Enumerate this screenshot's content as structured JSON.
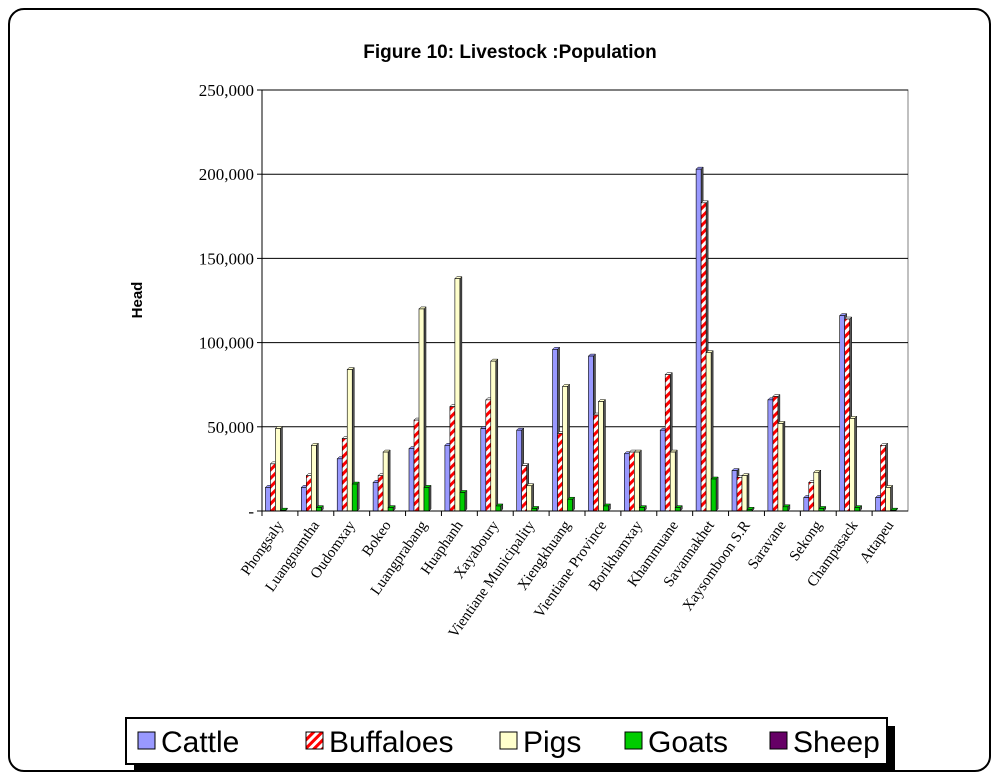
{
  "chart_data": {
    "type": "bar",
    "title": "Figure 10: Livestock :Population",
    "xlabel": "",
    "ylabel": "Head",
    "ylim": [
      0,
      250000
    ],
    "yticks": [
      0,
      50000,
      100000,
      150000,
      200000,
      250000
    ],
    "ytick_labels": [
      "-",
      "50,000",
      "100,000",
      "150,000",
      "200,000",
      "250,000"
    ],
    "grid": true,
    "legend_position": "bottom",
    "categories": [
      "Phongsaly",
      "Luangnamtha",
      "Oudomxay",
      "Bokeo",
      "Luangprabang",
      "Huaphanh",
      "Xayaboury",
      "Vientiane Municipality",
      "Xiengkhuang",
      "Vientiane Province",
      "Borikhamxay",
      "Khammuane",
      "Savannakhet",
      "Xaysomboon S.R",
      "Saravane",
      "Sekong",
      "Champasack",
      "Attapeu"
    ],
    "series": [
      {
        "name": "Cattle",
        "color": "#9999ff",
        "pattern": "solid",
        "values": [
          14000,
          14000,
          31000,
          17000,
          37000,
          39000,
          49000,
          48000,
          96000,
          92000,
          34000,
          48000,
          203000,
          24000,
          66000,
          8000,
          116000,
          8000
        ]
      },
      {
        "name": "Buffaloes",
        "color": "#ff0000",
        "pattern": "diagonal",
        "values": [
          28000,
          21000,
          43000,
          21000,
          54000,
          62000,
          66000,
          27000,
          46000,
          57000,
          35000,
          81000,
          183000,
          20000,
          68000,
          17000,
          114000,
          39000
        ]
      },
      {
        "name": "Pigs",
        "color": "#ffffcc",
        "pattern": "solid",
        "values": [
          49000,
          39000,
          84000,
          35000,
          120000,
          138000,
          89000,
          15000,
          74000,
          65000,
          35000,
          35000,
          94000,
          21000,
          52000,
          23000,
          55000,
          14000
        ]
      },
      {
        "name": "Goats",
        "color": "#00cc00",
        "pattern": "solid",
        "values": [
          500,
          2000,
          16000,
          2000,
          14000,
          11000,
          3000,
          1500,
          7000,
          3000,
          2000,
          2000,
          19000,
          1000,
          2500,
          1500,
          2000,
          500
        ]
      },
      {
        "name": "Sheep",
        "color": "#660066",
        "pattern": "solid",
        "values": [
          0,
          0,
          0,
          0,
          0,
          0,
          0,
          0,
          0,
          0,
          0,
          0,
          0,
          0,
          0,
          0,
          0,
          0
        ]
      }
    ]
  }
}
